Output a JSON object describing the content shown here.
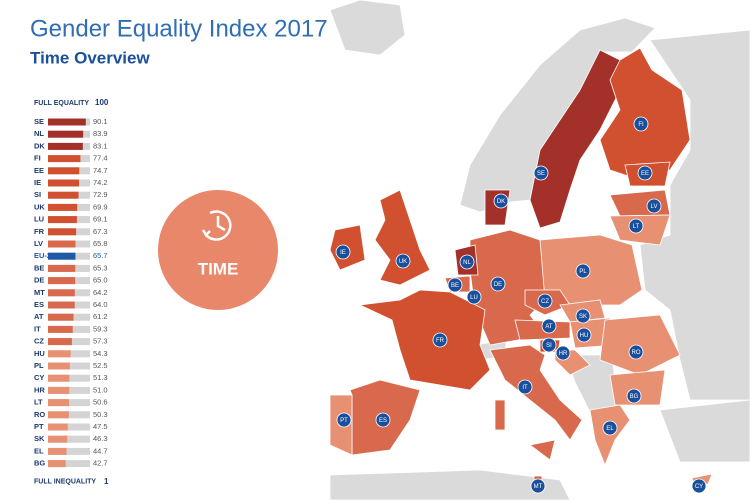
{
  "header": {
    "title": "Gender Equality Index 2017",
    "subtitle": "Time Overview"
  },
  "chart_data": {
    "type": "bar",
    "scale_top_label": "FULL EQUALITY",
    "scale_bottom_label": "FULL INEQUALITY",
    "xlim": [
      1,
      100
    ],
    "categories": [
      "SE",
      "NL",
      "DK",
      "FI",
      "EE",
      "IE",
      "SI",
      "UK",
      "LU",
      "FR",
      "LV",
      "EU-28",
      "BE",
      "DE",
      "MT",
      "ES",
      "AT",
      "IT",
      "CZ",
      "HU",
      "PL",
      "CY",
      "HR",
      "LT",
      "RO",
      "PT",
      "SK",
      "EL",
      "BG"
    ],
    "values": [
      90.1,
      83.9,
      83.1,
      77.4,
      74.7,
      74.2,
      72.9,
      69.9,
      69.1,
      67.3,
      65.8,
      65.7,
      65.3,
      65,
      64.2,
      64,
      61.2,
      59.3,
      57.3,
      54.3,
      52.5,
      51.3,
      51,
      50.6,
      50.3,
      47.5,
      46.3,
      44.7,
      42.7
    ],
    "value_labels": [
      "90.1",
      "83.9",
      "83.1",
      "77.4",
      "74.7",
      "74.2",
      "72.9",
      "69.9",
      "69.1",
      "67.3",
      "65.8",
      "65.7",
      "65.3",
      "65.0",
      "64.2",
      "64.0",
      "61.2",
      "59.3",
      "57.3",
      "54.3",
      "52.5",
      "51.3",
      "51.0",
      "50.6",
      "50.3",
      "47.5",
      "46.3",
      "44.7",
      "42.7"
    ],
    "colors": [
      "#a3312a",
      "#a3312a",
      "#a3312a",
      "#d1502f",
      "#d1502f",
      "#d1502f",
      "#d1502f",
      "#d1502f",
      "#d1502f",
      "#d1502f",
      "#d9694d",
      "#1f5aa8",
      "#d9694d",
      "#d9694d",
      "#d9694d",
      "#d9694d",
      "#d9694d",
      "#d9694d",
      "#d9694d",
      "#e89072",
      "#e89072",
      "#e89072",
      "#e89072",
      "#e89072",
      "#e89072",
      "#e89072",
      "#e89072",
      "#e89072",
      "#e89072"
    ],
    "track_color": "#d4d4d4"
  },
  "badge": {
    "label": "TIME"
  },
  "map": {
    "labels": [
      "SE",
      "FI",
      "EE",
      "LV",
      "LT",
      "DK",
      "IE",
      "UK",
      "NL",
      "BE",
      "LU",
      "DE",
      "PL",
      "CZ",
      "SK",
      "AT",
      "HU",
      "SI",
      "HR",
      "FR",
      "RO",
      "BG",
      "IT",
      "PT",
      "ES",
      "EL",
      "MT",
      "CY"
    ]
  }
}
